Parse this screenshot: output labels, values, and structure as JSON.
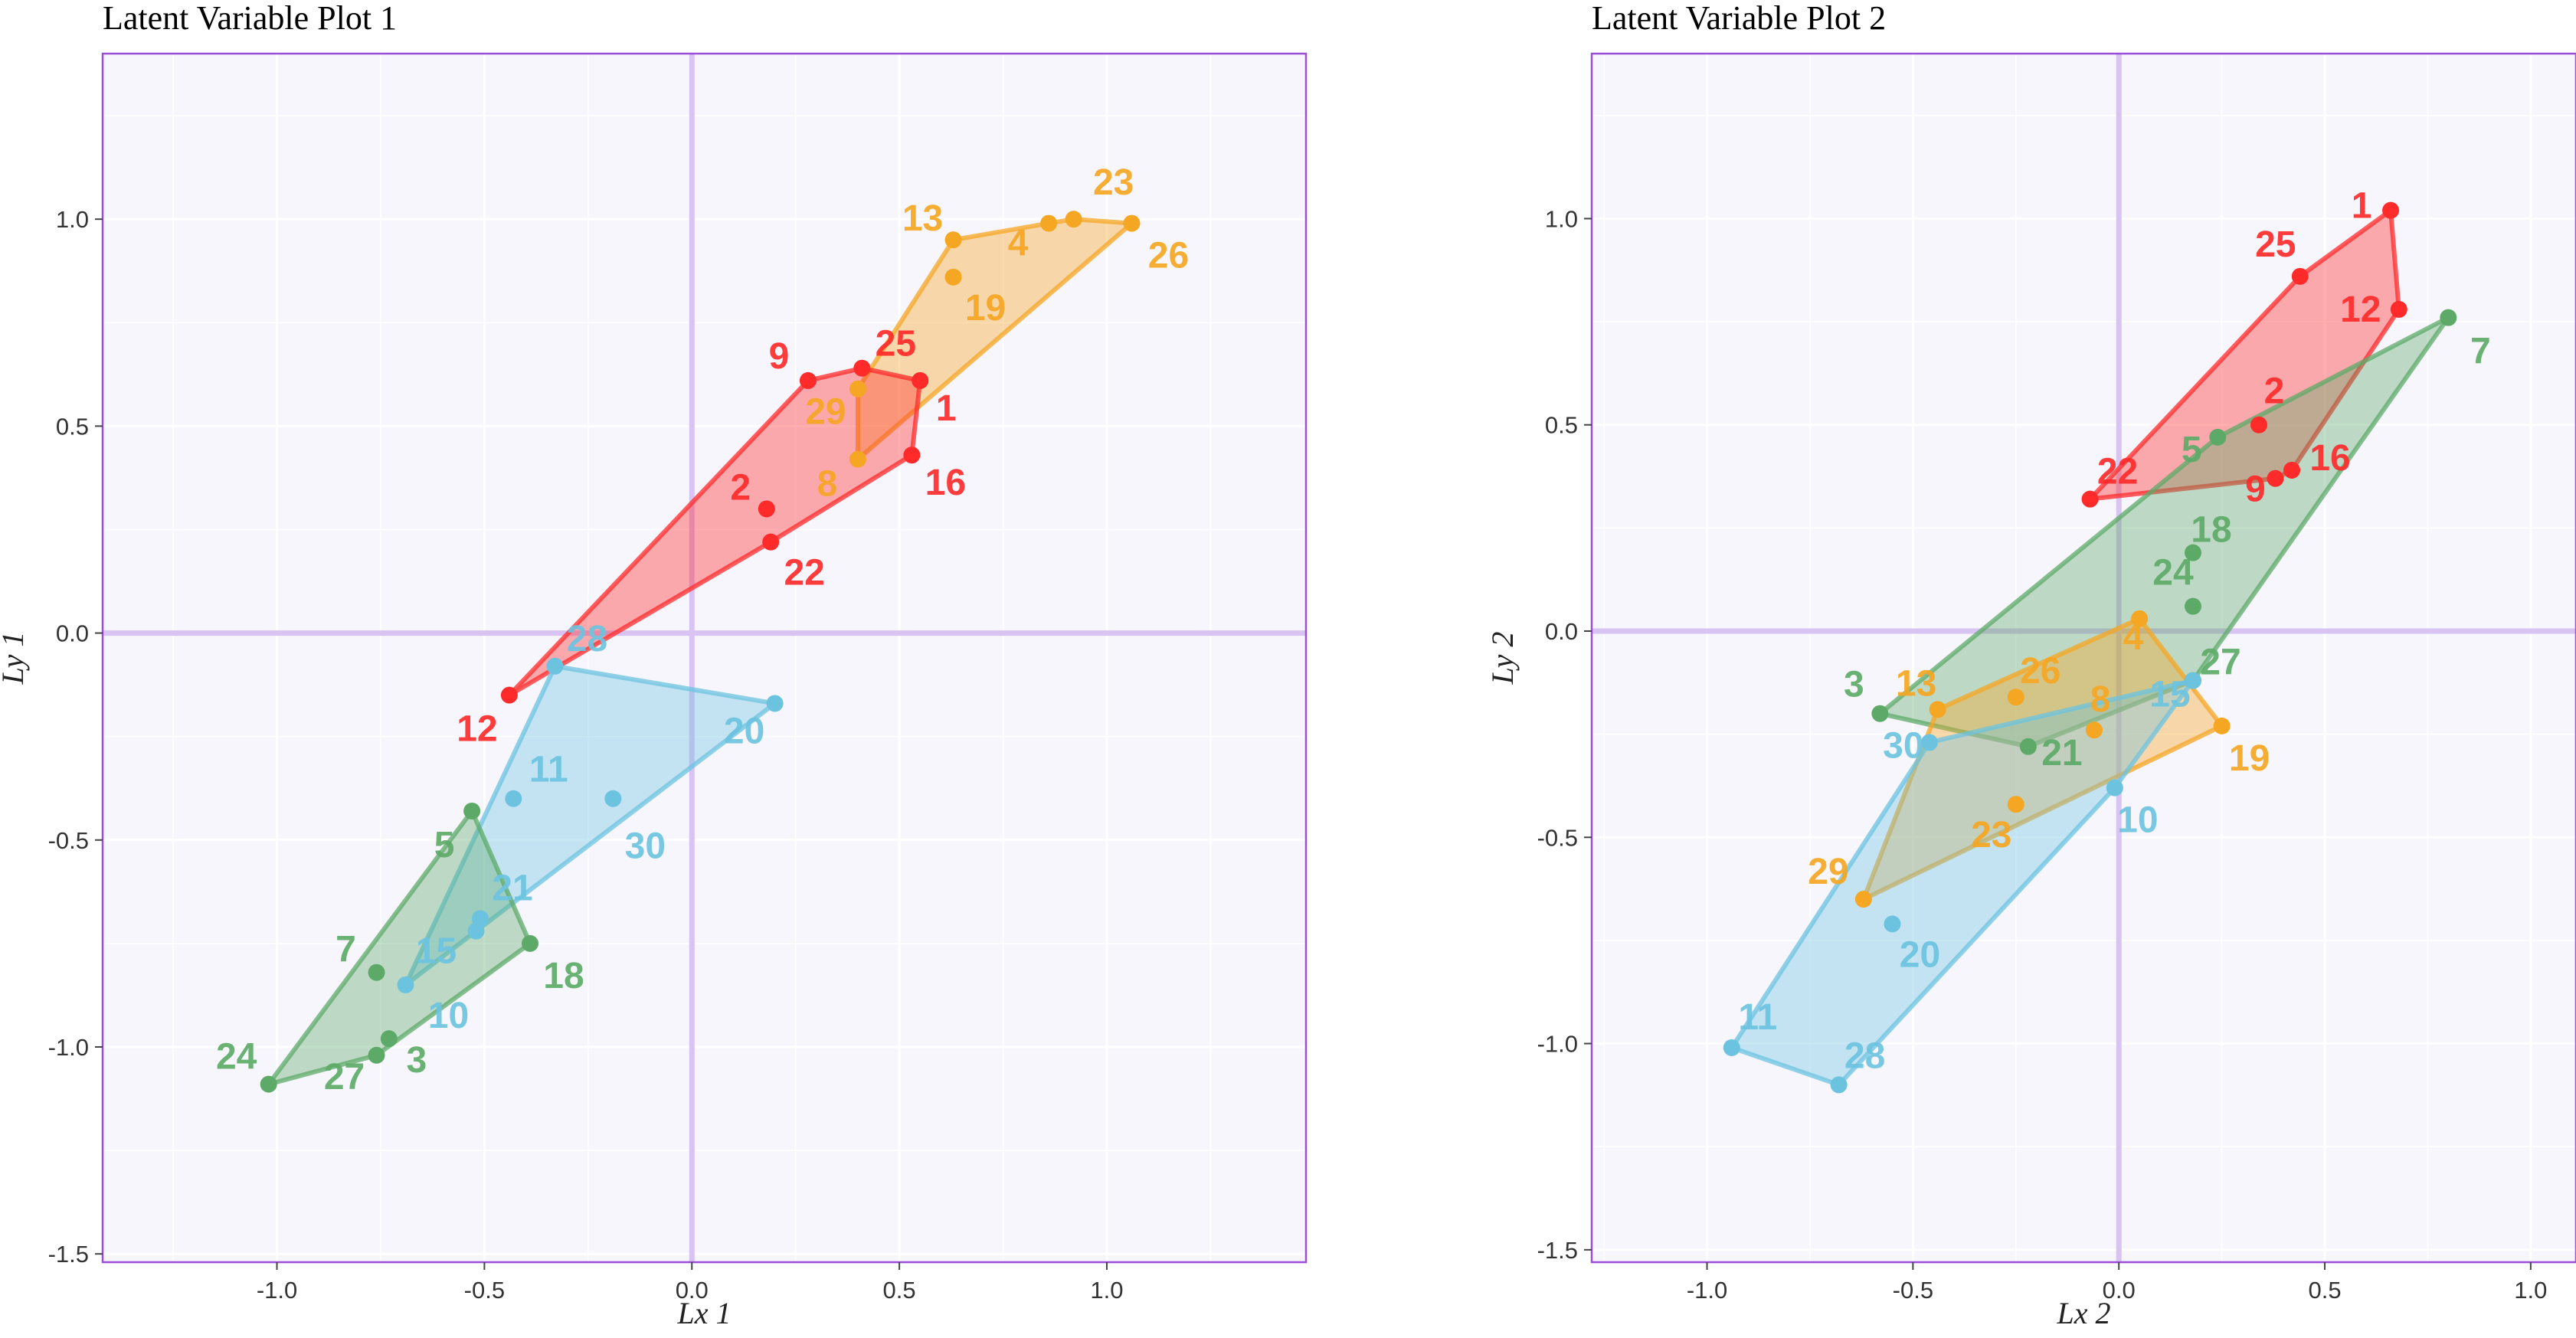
{
  "chart_data": [
    {
      "type": "scatter",
      "title": "Latent Variable Plot 1",
      "xlabel": "Lx 1",
      "ylabel": "Ly 1",
      "xlim": [
        -1.42,
        1.48
      ],
      "ylim": [
        -1.52,
        1.4
      ],
      "xticks": [
        -1.0,
        -0.5,
        0.0,
        0.5,
        1.0
      ],
      "yticks": [
        -1.5,
        -1.0,
        -0.5,
        0.0,
        0.5,
        1.0
      ],
      "xtick_labels": [
        "-1.0",
        "-0.5",
        "0.0",
        "0.5",
        "1.0"
      ],
      "ytick_labels": [
        "-1.5",
        "-1.0",
        "-0.5",
        "0.0",
        "0.5",
        "1.0"
      ],
      "grid": true,
      "hull": true,
      "groups": [
        {
          "color": "#f5a623",
          "points": [
            {
              "label": "13",
              "x": 0.63,
              "y": 0.95
            },
            {
              "label": "23",
              "x": 0.92,
              "y": 1.0
            },
            {
              "label": "4",
              "x": 0.86,
              "y": 0.99
            },
            {
              "label": "26",
              "x": 1.06,
              "y": 0.99
            },
            {
              "label": "19",
              "x": 0.63,
              "y": 0.86
            },
            {
              "label": "29",
              "x": 0.4,
              "y": 0.59
            },
            {
              "label": "8",
              "x": 0.4,
              "y": 0.42
            }
          ]
        },
        {
          "color": "#ff2a2a",
          "points": [
            {
              "label": "9",
              "x": 0.28,
              "y": 0.61
            },
            {
              "label": "25",
              "x": 0.41,
              "y": 0.64
            },
            {
              "label": "1",
              "x": 0.55,
              "y": 0.61
            },
            {
              "label": "16",
              "x": 0.53,
              "y": 0.43
            },
            {
              "label": "2",
              "x": 0.18,
              "y": 0.3
            },
            {
              "label": "22",
              "x": 0.19,
              "y": 0.22
            },
            {
              "label": "12",
              "x": -0.44,
              "y": -0.15
            }
          ]
        },
        {
          "color": "#6cc3e0",
          "points": [
            {
              "label": "28",
              "x": -0.33,
              "y": -0.08
            },
            {
              "label": "20",
              "x": 0.2,
              "y": -0.17
            },
            {
              "label": "11",
              "x": -0.43,
              "y": -0.4
            },
            {
              "label": "30",
              "x": -0.19,
              "y": -0.4
            },
            {
              "label": "21",
              "x": -0.51,
              "y": -0.69
            },
            {
              "label": "15",
              "x": -0.52,
              "y": -0.72
            },
            {
              "label": "10",
              "x": -0.69,
              "y": -0.85
            }
          ]
        },
        {
          "color": "#5daa68",
          "points": [
            {
              "label": "5",
              "x": -0.53,
              "y": -0.43
            },
            {
              "label": "18",
              "x": -0.39,
              "y": -0.75
            },
            {
              "label": "7",
              "x": -0.76,
              "y": -0.82
            },
            {
              "label": "3",
              "x": -0.73,
              "y": -0.98
            },
            {
              "label": "27",
              "x": -0.76,
              "y": -1.02
            },
            {
              "label": "24",
              "x": -1.02,
              "y": -1.09
            }
          ]
        }
      ]
    },
    {
      "type": "scatter",
      "title": "Latent Variable Plot 2",
      "xlabel": "Lx 2",
      "ylabel": "Ly 2",
      "xlim": [
        -1.28,
        1.11
      ],
      "ylim": [
        -1.53,
        1.4
      ],
      "xticks": [
        -1.0,
        -0.5,
        0.0,
        0.5,
        1.0
      ],
      "yticks": [
        -1.5,
        -1.0,
        -0.5,
        0.0,
        0.5,
        1.0
      ],
      "xtick_labels": [
        "-1.0",
        "-0.5",
        "0.0",
        "0.5",
        "1.0"
      ],
      "ytick_labels": [
        "-1.5",
        "-1.0",
        "-0.5",
        "0.0",
        "0.5",
        "1.0"
      ],
      "grid": true,
      "hull": true,
      "groups": [
        {
          "color": "#ff2a2a",
          "points": [
            {
              "label": "1",
              "x": 0.66,
              "y": 1.02
            },
            {
              "label": "25",
              "x": 0.44,
              "y": 0.86
            },
            {
              "label": "12",
              "x": 0.68,
              "y": 0.78
            },
            {
              "label": "2",
              "x": 0.34,
              "y": 0.5
            },
            {
              "label": "16",
              "x": 0.42,
              "y": 0.39
            },
            {
              "label": "9",
              "x": 0.38,
              "y": 0.37
            },
            {
              "label": "22",
              "x": -0.07,
              "y": 0.32
            }
          ]
        },
        {
          "color": "#5daa68",
          "points": [
            {
              "label": "7",
              "x": 0.8,
              "y": 0.76
            },
            {
              "label": "5",
              "x": 0.24,
              "y": 0.47
            },
            {
              "label": "18",
              "x": 0.18,
              "y": 0.19
            },
            {
              "label": "24",
              "x": 0.18,
              "y": 0.06
            },
            {
              "label": "27",
              "x": 0.18,
              "y": -0.12
            },
            {
              "label": "3",
              "x": -0.58,
              "y": -0.2
            },
            {
              "label": "21",
              "x": -0.22,
              "y": -0.28
            }
          ]
        },
        {
          "color": "#f5a623",
          "points": [
            {
              "label": "4",
              "x": 0.05,
              "y": 0.03
            },
            {
              "label": "13",
              "x": -0.44,
              "y": -0.19
            },
            {
              "label": "26",
              "x": -0.25,
              "y": -0.16
            },
            {
              "label": "8",
              "x": -0.06,
              "y": -0.24
            },
            {
              "label": "19",
              "x": 0.25,
              "y": -0.23
            },
            {
              "label": "23",
              "x": -0.25,
              "y": -0.42
            },
            {
              "label": "29",
              "x": -0.62,
              "y": -0.65
            }
          ]
        },
        {
          "color": "#6cc3e0",
          "points": [
            {
              "label": "15",
              "x": 0.18,
              "y": -0.12
            },
            {
              "label": "30",
              "x": -0.46,
              "y": -0.27
            },
            {
              "label": "10",
              "x": -0.01,
              "y": -0.38
            },
            {
              "label": "20",
              "x": -0.55,
              "y": -0.71
            },
            {
              "label": "11",
              "x": -0.94,
              "y": -1.01
            },
            {
              "label": "28",
              "x": -0.68,
              "y": -1.1
            }
          ]
        }
      ]
    }
  ]
}
